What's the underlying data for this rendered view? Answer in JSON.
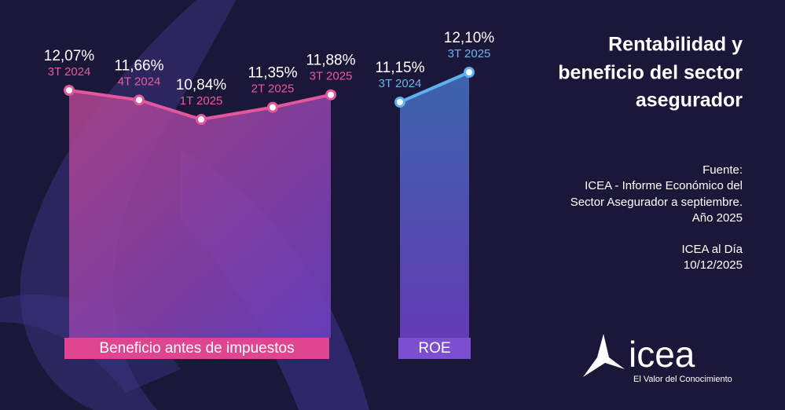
{
  "chart_data": [
    {
      "type": "line",
      "categories": [
        "3T 2024",
        "4T 2024",
        "1T 2025",
        "2T 2025",
        "3T 2025"
      ],
      "series": [
        {
          "name": "Beneficio antes de impuestos",
          "color": "#e2579d",
          "values": [
            12.07,
            11.66,
            10.84,
            11.35,
            11.88
          ],
          "value_labels": [
            "12,07%",
            "11,66%",
            "10,84%",
            "11,35%",
            "11,88%"
          ]
        }
      ]
    },
    {
      "type": "line",
      "categories": [
        "3T 2024",
        "3T 2025"
      ],
      "series": [
        {
          "name": "ROE",
          "color": "#5eb0f2",
          "values": [
            11.15,
            12.1
          ],
          "value_labels": [
            "11,15%",
            "12,10%"
          ]
        }
      ]
    }
  ],
  "title": [
    "Rentabilidad y",
    "beneficio del sector",
    "asegurador"
  ],
  "source": [
    "Fuente:",
    "ICEA - Informe Económico del",
    "Sector Asegurador a septiembre.",
    "Año 2025"
  ],
  "note": [
    "ICEA al Día",
    "10/12/2025"
  ],
  "logo": {
    "name": "icea",
    "tagline": "El Valor del Conocimiento"
  }
}
